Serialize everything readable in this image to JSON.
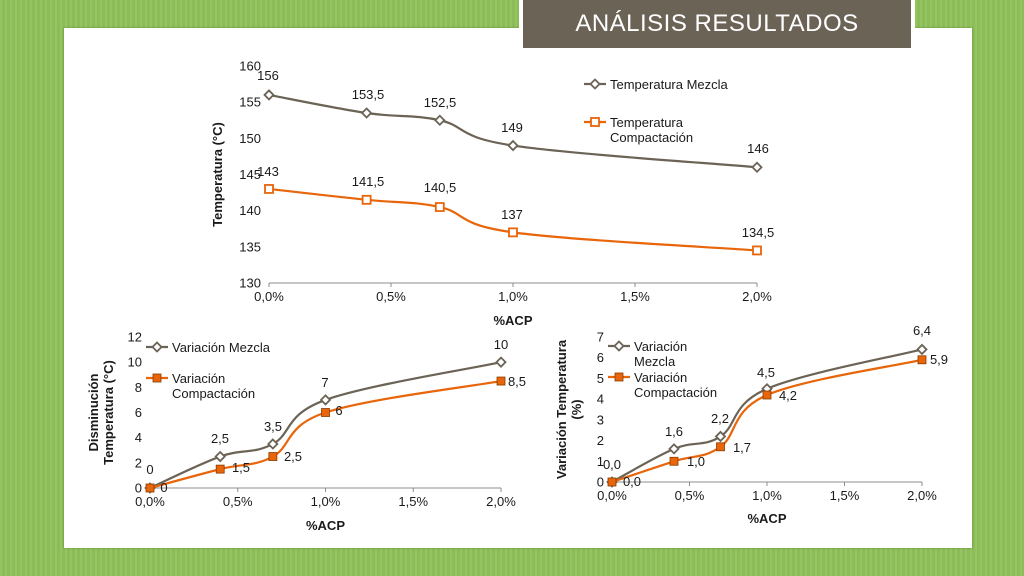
{
  "slide": {
    "title": "ANÁLISIS RESULTADOS"
  },
  "colors": {
    "series1": "#6b6356",
    "series2": "#e8650a"
  },
  "chart_data": [
    {
      "type": "line",
      "ylabel": "Temperatura (°C)",
      "xlabel": "%ACP",
      "xlim": [
        0,
        2
      ],
      "ylim": [
        130,
        160
      ],
      "x_tick_labels": [
        "0,0%",
        "0,5%",
        "1,0%",
        "1,5%",
        "2,0%"
      ],
      "y_ticks": [
        "130",
        "135",
        "140",
        "145",
        "150",
        "155",
        "160"
      ],
      "legend_position": "right",
      "series": [
        {
          "name": "Temperatura Mezcla",
          "x": [
            0,
            0.4,
            0.7,
            1.0,
            2.0
          ],
          "y": [
            156,
            153.5,
            152.5,
            149,
            146
          ],
          "labels": [
            "156",
            "153,5",
            "152,5",
            "149",
            "146"
          ]
        },
        {
          "name": "Temperatura Compactación",
          "x": [
            0,
            0.4,
            0.7,
            1.0,
            2.0
          ],
          "y": [
            143,
            141.5,
            140.5,
            137,
            134.5
          ],
          "labels": [
            "143",
            "141,5",
            "140,5",
            "137",
            "134,5"
          ]
        }
      ]
    },
    {
      "type": "line",
      "ylabel": "Disminución Temperatura (°C)",
      "xlabel": "%ACP",
      "xlim": [
        0,
        2
      ],
      "ylim": [
        0,
        12
      ],
      "x_tick_labels": [
        "0,0%",
        "0,5%",
        "1,0%",
        "1,5%",
        "2,0%"
      ],
      "y_ticks": [
        "0",
        "2",
        "4",
        "6",
        "8",
        "10",
        "12"
      ],
      "legend_position": "top-left",
      "series": [
        {
          "name": "Variación Mezcla",
          "x": [
            0,
            0.4,
            0.7,
            1.0,
            2.0
          ],
          "y": [
            0,
            2.5,
            3.5,
            7,
            10
          ],
          "labels": [
            "0",
            "2,5",
            "3,5",
            "7",
            "10"
          ]
        },
        {
          "name": "Variación Compactación",
          "x": [
            0,
            0.4,
            0.7,
            1.0,
            2.0
          ],
          "y": [
            0,
            1.5,
            2.5,
            6,
            8.5
          ],
          "labels": [
            "0",
            "1,5",
            "2,5",
            "6",
            "8,5"
          ]
        }
      ]
    },
    {
      "type": "line",
      "ylabel": "Variación Temperatura (%)",
      "xlabel": "%ACP",
      "xlim": [
        0,
        2
      ],
      "ylim": [
        0,
        7
      ],
      "x_tick_labels": [
        "0,0%",
        "0,5%",
        "1,0%",
        "1,5%",
        "2,0%"
      ],
      "y_ticks": [
        "0",
        "1",
        "2",
        "3",
        "4",
        "5",
        "6",
        "7"
      ],
      "legend_position": "top-left",
      "series": [
        {
          "name": "Variación Mezcla",
          "x": [
            0,
            0.4,
            0.7,
            1.0,
            2.0
          ],
          "y": [
            0,
            1.6,
            2.2,
            4.5,
            6.4
          ],
          "labels": [
            "0,0",
            "1,6",
            "2,2",
            "4,5",
            "6,4"
          ]
        },
        {
          "name": "Variación Compactación",
          "x": [
            0,
            0.4,
            0.7,
            1.0,
            2.0
          ],
          "y": [
            0,
            1.0,
            1.7,
            4.2,
            5.9
          ],
          "labels": [
            "0,0",
            "1,0",
            "1,7",
            "4,2",
            "5,9"
          ]
        }
      ]
    }
  ]
}
